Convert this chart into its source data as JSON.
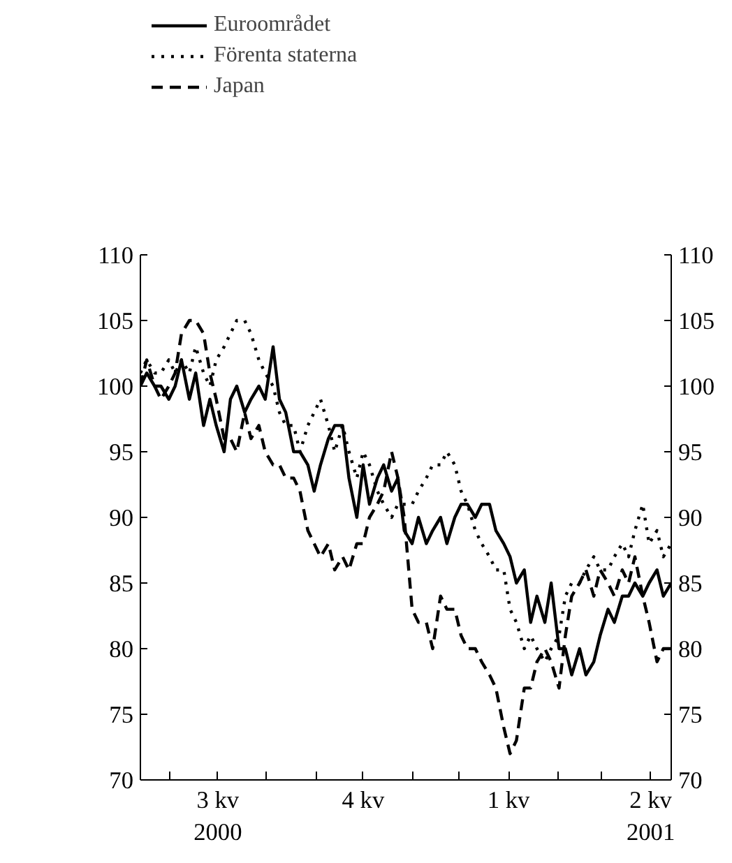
{
  "chart_data": {
    "type": "line",
    "x": [
      "2000-05-13",
      "2000-05-17",
      "2000-05-22",
      "2000-05-26",
      "2000-05-31",
      "2000-06-04",
      "2000-06-08",
      "2000-06-13",
      "2000-06-17",
      "2000-06-22",
      "2000-06-26",
      "2000-06-30",
      "2000-07-05",
      "2000-07-09",
      "2000-07-13",
      "2000-07-18",
      "2000-07-22",
      "2000-07-27",
      "2000-07-31",
      "2000-08-05",
      "2000-08-09",
      "2000-08-13",
      "2000-08-18",
      "2000-08-22",
      "2000-08-27",
      "2000-08-31",
      "2000-09-04",
      "2000-09-09",
      "2000-09-13",
      "2000-09-18",
      "2000-09-22",
      "2000-09-27",
      "2000-10-01",
      "2000-10-05",
      "2000-10-10",
      "2000-10-14",
      "2000-10-19",
      "2000-10-23",
      "2000-10-27",
      "2000-11-01",
      "2000-11-05",
      "2000-11-10",
      "2000-11-14",
      "2000-11-19",
      "2000-11-23",
      "2000-11-28",
      "2000-12-02",
      "2000-12-06",
      "2000-12-11",
      "2000-12-15",
      "2000-12-20",
      "2000-12-24",
      "2000-12-29",
      "2001-01-02",
      "2001-01-06",
      "2001-01-11",
      "2001-01-15",
      "2001-01-19",
      "2001-01-24",
      "2001-01-28",
      "2001-02-02",
      "2001-02-06",
      "2001-02-10",
      "2001-02-15",
      "2001-02-19",
      "2001-02-24",
      "2001-02-28",
      "2001-03-05",
      "2001-03-09",
      "2001-03-14",
      "2001-03-18",
      "2001-03-22",
      "2001-03-27",
      "2001-03-31",
      "2001-04-05",
      "2001-04-09",
      "2001-04-14"
    ],
    "series": [
      {
        "name": "Euroområdet",
        "color": "#000000",
        "line_style": "solid",
        "values": [
          100,
          101,
          100,
          100,
          99,
          100,
          102,
          99,
          101,
          97,
          99,
          97,
          95,
          99,
          100,
          98,
          99,
          100,
          99,
          103,
          99,
          98,
          95,
          95,
          94,
          92,
          94,
          96,
          97,
          97,
          93,
          90,
          94,
          91,
          93,
          94,
          92,
          93,
          89,
          88,
          90,
          88,
          89,
          90,
          88,
          90,
          91,
          91,
          90,
          91,
          91,
          89,
          88,
          87,
          85,
          86,
          82,
          84,
          82,
          85,
          80,
          80,
          78,
          80,
          78,
          79,
          81,
          83,
          82,
          84,
          84,
          85,
          84,
          85,
          86,
          84,
          85
        ]
      },
      {
        "name": "Förenta staterna",
        "color": "#000000",
        "line_style": "dotted",
        "values": [
          101,
          102,
          101,
          101,
          102,
          101,
          102,
          101,
          103,
          101,
          100,
          102,
          103,
          104,
          105,
          105,
          104,
          102,
          101,
          100,
          98,
          97,
          97,
          95,
          97,
          98,
          99,
          97,
          95,
          97,
          95,
          93,
          95,
          94,
          92,
          91,
          90,
          91,
          91,
          91,
          92,
          93,
          94,
          94,
          95,
          94,
          92,
          91,
          89,
          88,
          87,
          86,
          86,
          83,
          82,
          80,
          81,
          80,
          79,
          80,
          81,
          84,
          85,
          85,
          86,
          87,
          86,
          86,
          87,
          88,
          87,
          89,
          91,
          88,
          89,
          87,
          88
        ]
      },
      {
        "name": "Japan",
        "color": "#000000",
        "line_style": "dashed",
        "values": [
          100,
          102,
          100,
          99,
          100,
          101,
          104,
          105,
          105,
          104,
          101,
          99,
          96,
          96,
          95,
          98,
          96,
          97,
          95,
          94,
          94,
          93,
          93,
          92,
          89,
          88,
          87,
          88,
          86,
          87,
          86,
          88,
          88,
          90,
          91,
          92,
          95,
          93,
          90,
          83,
          82,
          82,
          80,
          84,
          83,
          83,
          81,
          80,
          80,
          79,
          78,
          77,
          74,
          72,
          73,
          77,
          77,
          79,
          80,
          79,
          77,
          81,
          84,
          85,
          86,
          84,
          86,
          85,
          84,
          86,
          85,
          87,
          84,
          82,
          79,
          80,
          80
        ]
      }
    ],
    "xlim": [
      "2000-05-13",
      "2001-04-14"
    ],
    "xticks": [
      {
        "value": "2000-06-01",
        "label": null
      },
      {
        "value": "2000-07-01",
        "label": "3 kv\n2000"
      },
      {
        "value": "2000-08-01",
        "label": null
      },
      {
        "value": "2000-09-01",
        "label": null
      },
      {
        "value": "2000-10-01",
        "label": "4 kv"
      },
      {
        "value": "2000-11-01",
        "label": null
      },
      {
        "value": "2000-12-01",
        "label": null
      },
      {
        "value": "2001-01-01",
        "label": "1 kv"
      },
      {
        "value": "2001-02-01",
        "label": null
      },
      {
        "value": "2001-03-01",
        "label": null
      },
      {
        "value": "2001-04-01",
        "label": "2 kv\n2001"
      }
    ],
    "ylim": [
      70,
      110
    ],
    "yticks": [
      70,
      75,
      80,
      85,
      90,
      95,
      100,
      105,
      110
    ],
    "y2lim": [
      70,
      110
    ],
    "y2ticks": [
      70,
      75,
      80,
      85,
      90,
      95,
      100,
      105,
      110
    ],
    "grid": false,
    "legend": "top left",
    "marker": "none"
  }
}
